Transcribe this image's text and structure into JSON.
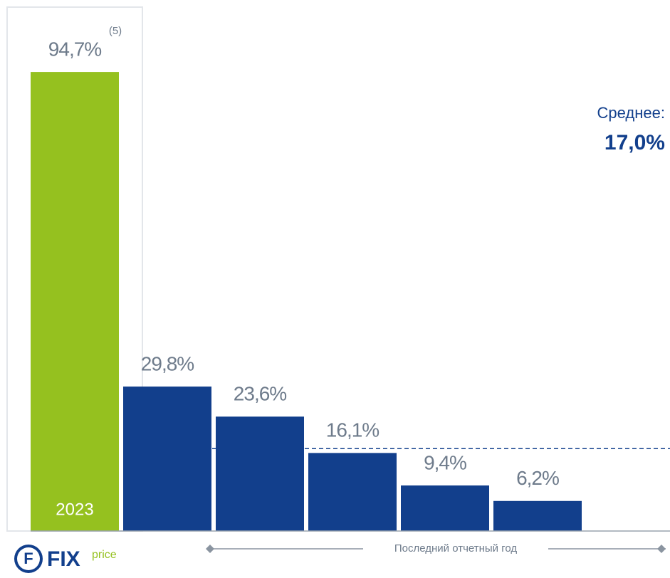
{
  "chart_data": {
    "type": "bar",
    "categories": [
      "2023",
      null,
      null,
      null,
      null,
      null
    ],
    "values": [
      94.7,
      29.8,
      23.6,
      16.1,
      9.4,
      6.2
    ],
    "value_labels": [
      "94,7%",
      "29,8%",
      "23,6%",
      "16,1%",
      "9,4%",
      "6,2%"
    ],
    "colors": [
      "#95c11f",
      "#123f8c",
      "#123f8c",
      "#123f8c",
      "#123f8c",
      "#123f8c"
    ],
    "footnote": "(5)",
    "average": {
      "label": "Среднее:",
      "value": 17.0,
      "value_label": "17,0%",
      "color": "#123f8c"
    },
    "period_label": "Последний отчетный год",
    "logo": {
      "mark": "F",
      "name": "FIX",
      "suffix": "price"
    }
  }
}
